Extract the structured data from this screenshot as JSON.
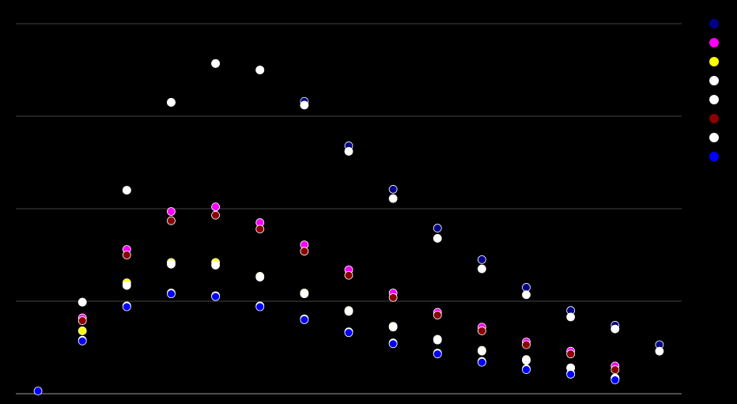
{
  "chart_data": {
    "type": "scatter",
    "x": [
      0,
      1,
      2,
      3,
      4,
      5,
      6,
      7,
      8,
      9,
      10,
      11,
      12,
      13,
      14
    ],
    "xlim": [
      -0.5,
      14.5
    ],
    "ylim": [
      0,
      4
    ],
    "yticks": [
      0,
      1,
      2,
      3,
      4
    ],
    "grid": true,
    "legend": "right",
    "series": [
      {
        "color": "#00008b",
        "values": [
          null,
          0.99,
          2.2,
          3.15,
          3.57,
          3.5,
          3.16,
          2.68,
          2.21,
          1.79,
          1.45,
          1.15,
          0.9,
          0.74,
          0.53
        ]
      },
      {
        "color": "#ff00ff",
        "values": [
          null,
          0.82,
          1.56,
          1.97,
          2.02,
          1.85,
          1.61,
          1.34,
          1.09,
          0.88,
          0.72,
          0.56,
          0.46,
          0.3,
          null
        ]
      },
      {
        "color": "#ffff00",
        "values": [
          null,
          0.68,
          1.2,
          1.42,
          1.42,
          1.27,
          1.09,
          0.9,
          0.73,
          0.59,
          0.47,
          0.37,
          0.28,
          0.17,
          null
        ]
      },
      {
        "color": "#ffffff",
        "values": [
          null,
          0.99,
          2.2,
          3.15,
          3.57,
          3.5,
          3.12,
          2.62,
          2.11,
          1.68,
          1.35,
          1.07,
          0.83,
          0.7,
          0.46
        ]
      },
      {
        "color": "#ffffff",
        "values": [
          null,
          null,
          1.17,
          1.4,
          1.39,
          1.26,
          1.08,
          0.89,
          0.72,
          0.58,
          0.46,
          0.36,
          0.28,
          0.17,
          null
        ]
      },
      {
        "color": "#8b0000",
        "values": [
          null,
          0.79,
          1.5,
          1.87,
          1.93,
          1.78,
          1.54,
          1.28,
          1.04,
          0.85,
          0.68,
          0.53,
          0.43,
          0.26,
          null
        ]
      },
      {
        "color": "#ffffff",
        "values": [
          null,
          0.58,
          0.95,
          1.09,
          1.06,
          0.95,
          0.81,
          0.67,
          0.55,
          0.44,
          0.35,
          0.27,
          0.22,
          0.16,
          null
        ]
      },
      {
        "color": "#0000ff",
        "values": [
          0.03,
          0.57,
          0.94,
          1.08,
          1.05,
          0.94,
          0.8,
          0.66,
          0.54,
          0.43,
          0.34,
          0.26,
          0.21,
          0.15,
          null
        ]
      }
    ]
  }
}
